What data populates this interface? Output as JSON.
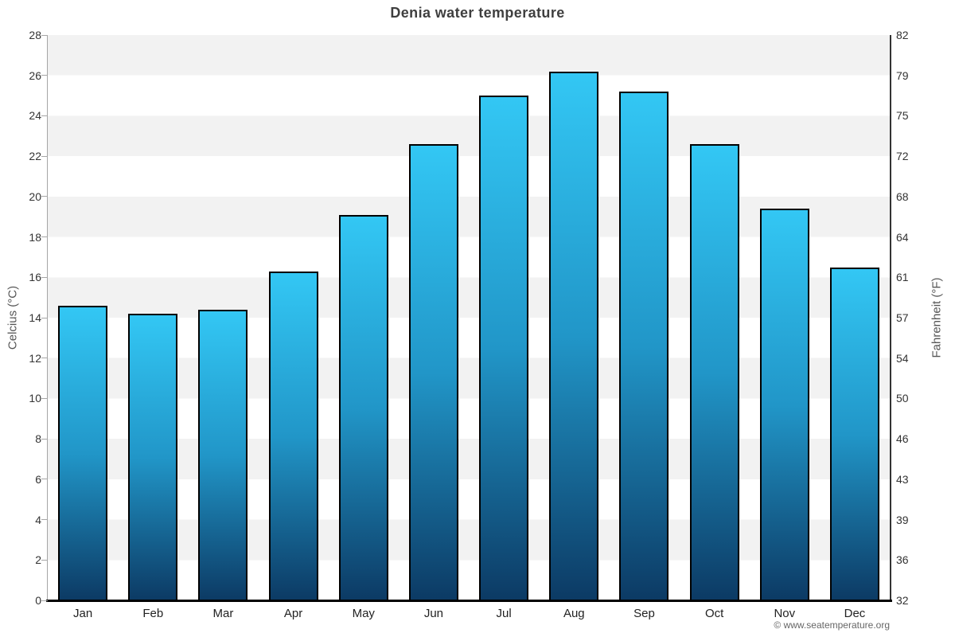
{
  "chart_data": {
    "type": "bar",
    "title": "Denia water temperature",
    "categories": [
      "Jan",
      "Feb",
      "Mar",
      "Apr",
      "May",
      "Jun",
      "Jul",
      "Aug",
      "Sep",
      "Oct",
      "Nov",
      "Dec"
    ],
    "values": [
      14.6,
      14.2,
      14.4,
      16.3,
      19.1,
      22.6,
      25.0,
      26.2,
      25.2,
      22.6,
      19.4,
      16.5
    ],
    "series_name": "Water temperature (°C)",
    "ylabel_left": "Celcius (°C)",
    "ylabel_right": "Fahrenheit (°F)",
    "xlabel": "",
    "ylim": [
      0,
      28
    ],
    "yticks_celsius": [
      0,
      2,
      4,
      6,
      8,
      10,
      12,
      14,
      16,
      18,
      20,
      22,
      24,
      26,
      28
    ],
    "yticks_fahrenheit": [
      32,
      36,
      39,
      43,
      46,
      50,
      54,
      57,
      61,
      64,
      68,
      72,
      75,
      79,
      82
    ],
    "grid": "alternating horizontal bands every 2°C, light gray / white",
    "legend": "none",
    "colors": {
      "bar_gradient_top": "#33c7f4",
      "bar_gradient_mid": "#2196c8",
      "bar_gradient_bottom": "#0c3a64",
      "bar_border": "#000000",
      "band_gray": "#f2f2f2",
      "title_text": "#3f3f3f",
      "tick_text": "#333333",
      "bottom_axis": "#000000"
    }
  },
  "footer": {
    "copyright": "© www.seatemperature.org"
  }
}
